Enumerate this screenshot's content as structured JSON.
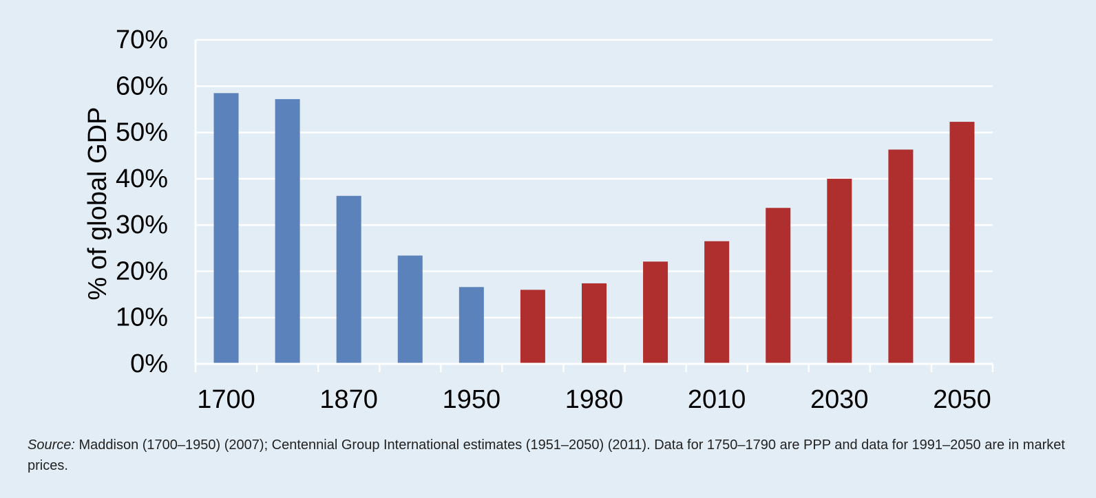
{
  "colors": {
    "background": "#e3edf5",
    "historical": "#5b82bb",
    "projected": "#af2f2f",
    "gridline": "#ffffff"
  },
  "chart_data": {
    "type": "bar",
    "ylabel": "% of global GDP",
    "ylim": [
      0,
      70
    ],
    "yticks": [
      0,
      10,
      20,
      30,
      40,
      50,
      60,
      70
    ],
    "ytick_labels": [
      "0%",
      "10%",
      "20%",
      "30%",
      "40%",
      "50%",
      "60%",
      "70%"
    ],
    "xtick_labels": [
      "1700",
      "1870",
      "1950",
      "1980",
      "2010",
      "2030",
      "2050"
    ],
    "grid": true,
    "values": [
      58.5,
      57.2,
      36.3,
      23.4,
      16.6,
      16.0,
      17.4,
      22.1,
      26.5,
      33.7,
      40.0,
      46.3,
      52.3
    ],
    "bar_groups": [
      "historical",
      "historical",
      "historical",
      "historical",
      "historical",
      "projected",
      "projected",
      "projected",
      "projected",
      "projected",
      "projected",
      "projected",
      "projected"
    ]
  },
  "source": {
    "label": "Source:",
    "text": " Maddison (1700–1950) (2007); Centennial Group International estimates (1951–2050) (2011). Data for 1750–1790 are PPP and data for 1991–2050 are in market prices."
  }
}
